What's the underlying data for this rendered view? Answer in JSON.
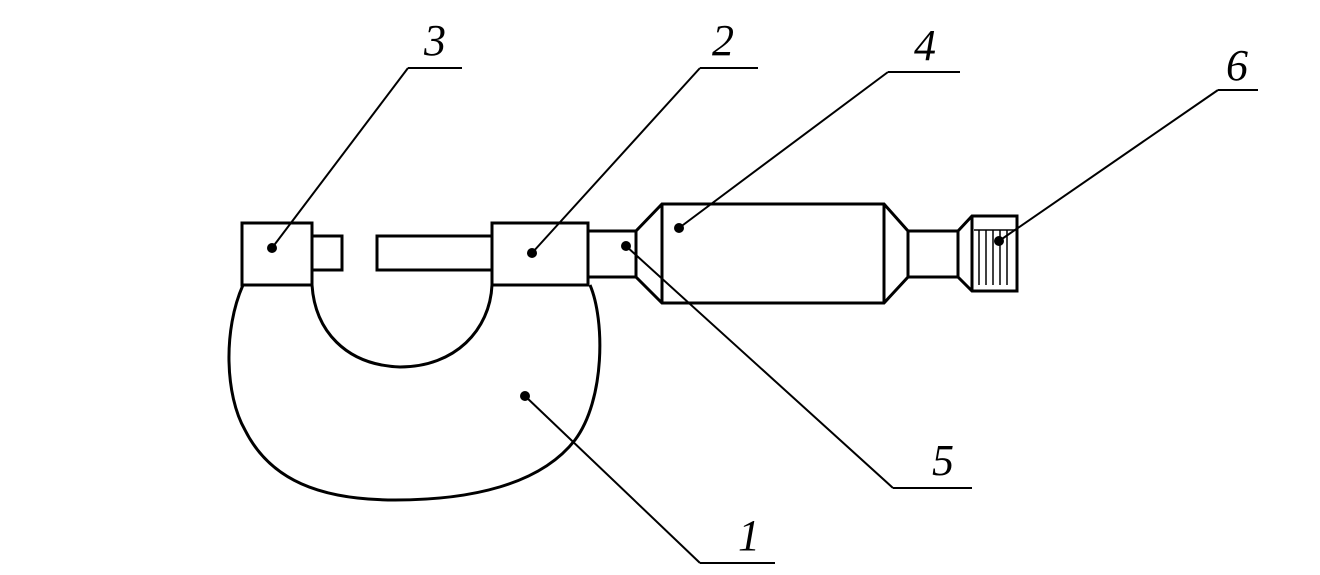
{
  "labels": {
    "frame": "1",
    "stem": "2",
    "anvil": "3",
    "thimble": "4",
    "spindle": "5",
    "ratchet": "6"
  }
}
